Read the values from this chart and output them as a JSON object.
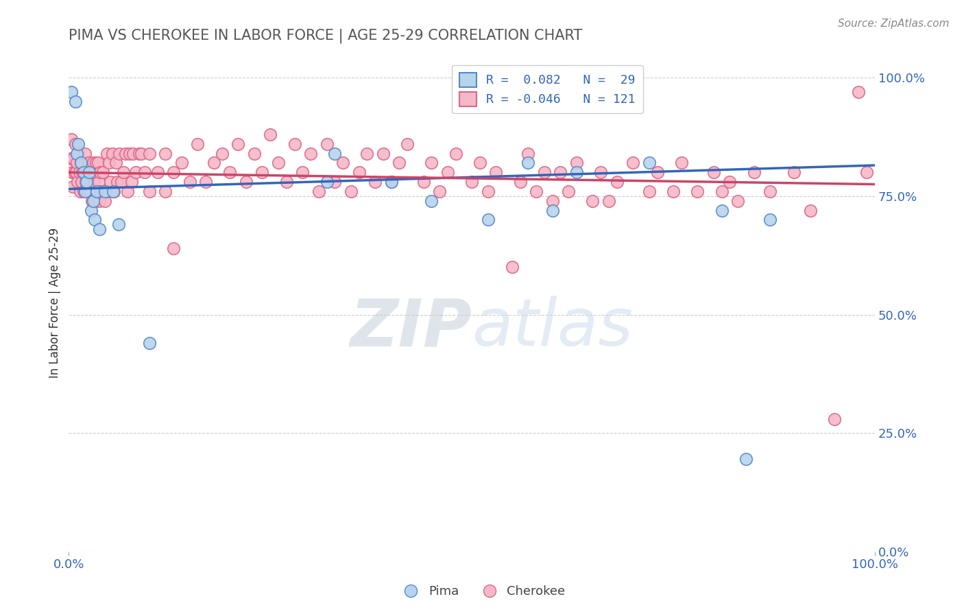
{
  "title": "PIMA VS CHEROKEE IN LABOR FORCE | AGE 25-29 CORRELATION CHART",
  "source_text": "Source: ZipAtlas.com",
  "ylabel": "In Labor Force | Age 25-29",
  "x_min": 0.0,
  "x_max": 1.0,
  "y_min": 0.0,
  "y_max": 1.05,
  "pima_fill_color": "#b8d4ec",
  "cherokee_fill_color": "#f5b8c8",
  "pima_edge_color": "#5588cc",
  "cherokee_edge_color": "#dd6688",
  "pima_line_color": "#3366bb",
  "cherokee_line_color": "#cc4466",
  "legend_label_color": "#3366bb",
  "axis_tick_color": "#3366bb",
  "title_color": "#555555",
  "ylabel_color": "#333333",
  "background_color": "#ffffff",
  "grid_color": "#cccccc",
  "watermark_color": "#c8d8ea",
  "pima_trend_start": 0.765,
  "pima_trend_end": 0.815,
  "cherokee_trend_start": 0.8,
  "cherokee_trend_end": 0.775,
  "yticks": [
    0.0,
    0.25,
    0.5,
    0.75,
    1.0
  ],
  "ytick_labels": [
    "0.0%",
    "25.0%",
    "50.0%",
    "75.0%",
    "100.0%"
  ],
  "xtick_positions": [
    0.0,
    1.0
  ],
  "xtick_labels": [
    "0.0%",
    "100.0%"
  ],
  "pima_scatter": [
    [
      0.003,
      0.97
    ],
    [
      0.008,
      0.95
    ],
    [
      0.01,
      0.84
    ],
    [
      0.012,
      0.86
    ],
    [
      0.015,
      0.82
    ],
    [
      0.018,
      0.8
    ],
    [
      0.02,
      0.76
    ],
    [
      0.022,
      0.78
    ],
    [
      0.025,
      0.8
    ],
    [
      0.028,
      0.72
    ],
    [
      0.03,
      0.74
    ],
    [
      0.032,
      0.7
    ],
    [
      0.035,
      0.76
    ],
    [
      0.038,
      0.68
    ],
    [
      0.045,
      0.76
    ],
    [
      0.055,
      0.76
    ],
    [
      0.062,
      0.69
    ],
    [
      0.1,
      0.44
    ],
    [
      0.32,
      0.78
    ],
    [
      0.33,
      0.84
    ],
    [
      0.4,
      0.78
    ],
    [
      0.45,
      0.74
    ],
    [
      0.52,
      0.7
    ],
    [
      0.57,
      0.82
    ],
    [
      0.6,
      0.72
    ],
    [
      0.63,
      0.8
    ],
    [
      0.72,
      0.82
    ],
    [
      0.81,
      0.72
    ],
    [
      0.87,
      0.7
    ],
    [
      0.84,
      0.195
    ]
  ],
  "cherokee_scatter": [
    [
      0.002,
      0.83
    ],
    [
      0.003,
      0.87
    ],
    [
      0.004,
      0.8
    ],
    [
      0.005,
      0.77
    ],
    [
      0.006,
      0.83
    ],
    [
      0.007,
      0.8
    ],
    [
      0.008,
      0.86
    ],
    [
      0.009,
      0.8
    ],
    [
      0.01,
      0.82
    ],
    [
      0.011,
      0.78
    ],
    [
      0.012,
      0.84
    ],
    [
      0.013,
      0.8
    ],
    [
      0.014,
      0.76
    ],
    [
      0.015,
      0.82
    ],
    [
      0.016,
      0.78
    ],
    [
      0.017,
      0.8
    ],
    [
      0.018,
      0.76
    ],
    [
      0.019,
      0.8
    ],
    [
      0.02,
      0.84
    ],
    [
      0.021,
      0.78
    ],
    [
      0.022,
      0.8
    ],
    [
      0.023,
      0.76
    ],
    [
      0.024,
      0.82
    ],
    [
      0.025,
      0.76
    ],
    [
      0.026,
      0.8
    ],
    [
      0.027,
      0.76
    ],
    [
      0.028,
      0.8
    ],
    [
      0.029,
      0.74
    ],
    [
      0.03,
      0.82
    ],
    [
      0.031,
      0.78
    ],
    [
      0.032,
      0.8
    ],
    [
      0.033,
      0.74
    ],
    [
      0.034,
      0.82
    ],
    [
      0.035,
      0.76
    ],
    [
      0.036,
      0.82
    ],
    [
      0.037,
      0.78
    ],
    [
      0.038,
      0.74
    ],
    [
      0.039,
      0.8
    ],
    [
      0.04,
      0.76
    ],
    [
      0.042,
      0.8
    ],
    [
      0.045,
      0.74
    ],
    [
      0.047,
      0.84
    ],
    [
      0.048,
      0.76
    ],
    [
      0.05,
      0.82
    ],
    [
      0.052,
      0.78
    ],
    [
      0.054,
      0.84
    ],
    [
      0.056,
      0.76
    ],
    [
      0.058,
      0.82
    ],
    [
      0.06,
      0.78
    ],
    [
      0.063,
      0.84
    ],
    [
      0.065,
      0.78
    ],
    [
      0.068,
      0.8
    ],
    [
      0.07,
      0.84
    ],
    [
      0.073,
      0.76
    ],
    [
      0.075,
      0.84
    ],
    [
      0.078,
      0.78
    ],
    [
      0.08,
      0.84
    ],
    [
      0.083,
      0.8
    ],
    [
      0.087,
      0.84
    ],
    [
      0.09,
      0.84
    ],
    [
      0.094,
      0.8
    ],
    [
      0.1,
      0.84
    ],
    [
      0.1,
      0.76
    ],
    [
      0.11,
      0.8
    ],
    [
      0.12,
      0.84
    ],
    [
      0.12,
      0.76
    ],
    [
      0.13,
      0.8
    ],
    [
      0.13,
      0.64
    ],
    [
      0.14,
      0.82
    ],
    [
      0.15,
      0.78
    ],
    [
      0.16,
      0.86
    ],
    [
      0.17,
      0.78
    ],
    [
      0.18,
      0.82
    ],
    [
      0.19,
      0.84
    ],
    [
      0.2,
      0.8
    ],
    [
      0.21,
      0.86
    ],
    [
      0.22,
      0.78
    ],
    [
      0.23,
      0.84
    ],
    [
      0.24,
      0.8
    ],
    [
      0.25,
      0.88
    ],
    [
      0.26,
      0.82
    ],
    [
      0.27,
      0.78
    ],
    [
      0.28,
      0.86
    ],
    [
      0.29,
      0.8
    ],
    [
      0.3,
      0.84
    ],
    [
      0.31,
      0.76
    ],
    [
      0.32,
      0.86
    ],
    [
      0.33,
      0.78
    ],
    [
      0.34,
      0.82
    ],
    [
      0.35,
      0.76
    ],
    [
      0.36,
      0.8
    ],
    [
      0.37,
      0.84
    ],
    [
      0.38,
      0.78
    ],
    [
      0.39,
      0.84
    ],
    [
      0.4,
      0.78
    ],
    [
      0.41,
      0.82
    ],
    [
      0.42,
      0.86
    ],
    [
      0.44,
      0.78
    ],
    [
      0.45,
      0.82
    ],
    [
      0.46,
      0.76
    ],
    [
      0.47,
      0.8
    ],
    [
      0.48,
      0.84
    ],
    [
      0.5,
      0.78
    ],
    [
      0.51,
      0.82
    ],
    [
      0.52,
      0.76
    ],
    [
      0.53,
      0.8
    ],
    [
      0.55,
      0.6
    ],
    [
      0.56,
      0.78
    ],
    [
      0.57,
      0.84
    ],
    [
      0.58,
      0.76
    ],
    [
      0.59,
      0.8
    ],
    [
      0.6,
      0.74
    ],
    [
      0.61,
      0.8
    ],
    [
      0.62,
      0.76
    ],
    [
      0.63,
      0.82
    ],
    [
      0.65,
      0.74
    ],
    [
      0.66,
      0.8
    ],
    [
      0.67,
      0.74
    ],
    [
      0.68,
      0.78
    ],
    [
      0.7,
      0.82
    ],
    [
      0.72,
      0.76
    ],
    [
      0.73,
      0.8
    ],
    [
      0.75,
      0.76
    ],
    [
      0.76,
      0.82
    ],
    [
      0.78,
      0.76
    ],
    [
      0.8,
      0.8
    ],
    [
      0.81,
      0.76
    ],
    [
      0.82,
      0.78
    ],
    [
      0.83,
      0.74
    ],
    [
      0.85,
      0.8
    ],
    [
      0.87,
      0.76
    ],
    [
      0.9,
      0.8
    ],
    [
      0.92,
      0.72
    ],
    [
      0.95,
      0.28
    ],
    [
      0.98,
      0.97
    ],
    [
      0.99,
      0.8
    ]
  ]
}
